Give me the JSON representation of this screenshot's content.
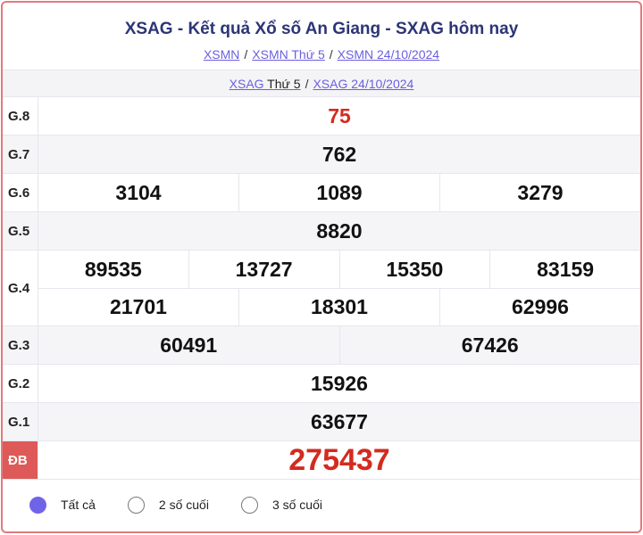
{
  "header": {
    "title": "XSAG - Kết quả Xổ số An Giang - SXAG hôm nay",
    "breadcrumbs": [
      "XSMN",
      "XSMN Thứ 5",
      "XSMN 24/10/2024"
    ],
    "separator": "/"
  },
  "subnav": {
    "link1_a": "XSAG",
    "link1_b": " Thứ 5",
    "link2": "XSAG 24/10/2024"
  },
  "prizes": [
    {
      "label": "G.8",
      "lines": [
        [
          "75"
        ]
      ],
      "highlight": true
    },
    {
      "label": "G.7",
      "lines": [
        [
          "762"
        ]
      ]
    },
    {
      "label": "G.6",
      "lines": [
        [
          "3104",
          "1089",
          "3279"
        ]
      ]
    },
    {
      "label": "G.5",
      "lines": [
        [
          "8820"
        ]
      ]
    },
    {
      "label": "G.4",
      "lines": [
        [
          "89535",
          "13727",
          "15350",
          "83159"
        ],
        [
          "21701",
          "18301",
          "62996"
        ]
      ]
    },
    {
      "label": "G.3",
      "lines": [
        [
          "60491",
          "67426"
        ]
      ]
    },
    {
      "label": "G.2",
      "lines": [
        [
          "15926"
        ]
      ]
    },
    {
      "label": "G.1",
      "lines": [
        [
          "63677"
        ]
      ]
    },
    {
      "label": "ĐB",
      "lines": [
        [
          "275437"
        ]
      ],
      "highlight": true
    }
  ],
  "filter": {
    "options": [
      "Tất cả",
      "2 số cuối",
      "3 số cuối"
    ],
    "selected": 0
  },
  "colors": {
    "accent": "#6f64e8",
    "prize_red": "#d42a1f",
    "special_label_bg": "#dd5a58",
    "title": "#2c3576"
  }
}
